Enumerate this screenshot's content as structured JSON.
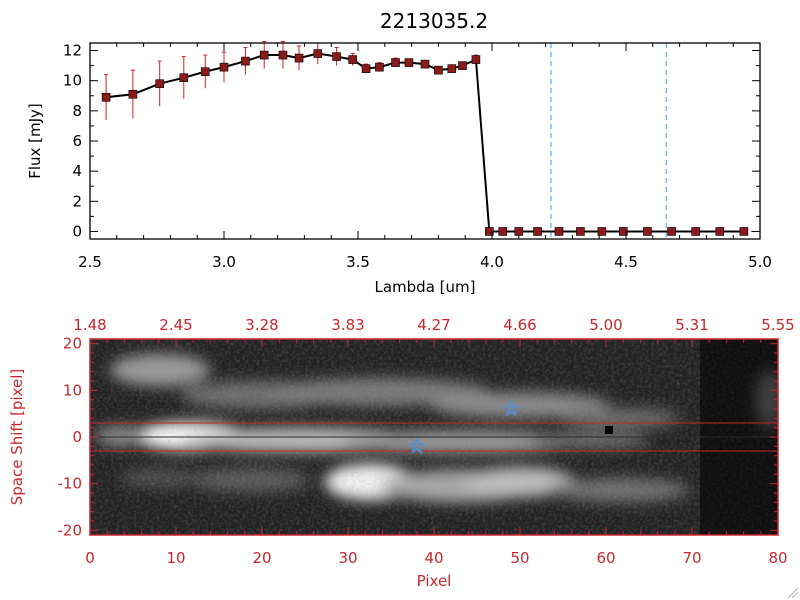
{
  "chart_data": [
    {
      "type": "line",
      "title": "2213035.2",
      "xlabel": "Lambda [um]",
      "ylabel": "Flux [mJy]",
      "xlim": [
        2.5,
        5.0
      ],
      "ylim": [
        -0.5,
        12.5
      ],
      "xticks": [
        "2.5",
        "3.0",
        "3.5",
        "4.0",
        "4.5",
        "5.0"
      ],
      "xtick_values": [
        2.5,
        3.0,
        3.5,
        4.0,
        4.5,
        5.0
      ],
      "yticks": [
        "0",
        "2",
        "4",
        "6",
        "8",
        "10",
        "12"
      ],
      "ytick_values": [
        0,
        2,
        4,
        6,
        8,
        10,
        12
      ],
      "grid": false,
      "series": [
        {
          "color": "#000000",
          "marker_color": "#8b1a1a",
          "x": [
            2.56,
            2.66,
            2.76,
            2.85,
            2.93,
            3.0,
            3.08,
            3.15,
            3.22,
            3.28,
            3.35,
            3.42,
            3.48,
            3.53,
            3.58,
            3.64,
            3.69,
            3.75,
            3.8,
            3.85,
            3.89,
            3.94,
            3.99,
            4.04,
            4.1,
            4.17,
            4.25,
            4.33,
            4.41,
            4.49,
            4.58,
            4.67,
            4.76,
            4.85,
            4.94
          ],
          "y": [
            8.9,
            9.1,
            9.8,
            10.2,
            10.6,
            10.9,
            11.3,
            11.7,
            11.7,
            11.5,
            11.8,
            11.6,
            11.4,
            10.8,
            10.9,
            11.2,
            11.2,
            11.1,
            10.7,
            10.8,
            11.0,
            11.4,
            0.0,
            0.0,
            0.0,
            0.0,
            0.0,
            0.0,
            0.0,
            0.0,
            0.0,
            0.0,
            0.0,
            0.0,
            0.0
          ],
          "err": [
            1.5,
            1.6,
            1.5,
            1.4,
            1.1,
            1.0,
            0.9,
            0.9,
            0.9,
            0.8,
            0.7,
            0.6,
            0.4,
            0.3,
            0.3,
            0.3,
            0.2,
            0.2,
            0.2,
            0.2,
            0.2,
            0.3,
            0,
            0,
            0,
            0,
            0,
            0,
            0,
            0,
            0,
            0,
            0,
            0,
            0
          ]
        }
      ],
      "vlines": [
        {
          "x": 4.22,
          "color": "#4a90d9",
          "style": "dashed"
        },
        {
          "x": 4.65,
          "color": "#4a90d9",
          "style": "dashed"
        }
      ],
      "hline": {
        "y": 0.0,
        "color": "#c8262c",
        "style": "dashed"
      }
    },
    {
      "type": "heatmap",
      "xlabel": "Pixel",
      "ylabel": "Space Shift [pixel]",
      "xlim": [
        0,
        80
      ],
      "ylim": [
        -21,
        21
      ],
      "xticks": [
        "0",
        "10",
        "20",
        "30",
        "40",
        "50",
        "60",
        "70",
        "80"
      ],
      "xtick_values": [
        0,
        10,
        20,
        30,
        40,
        50,
        60,
        70,
        80
      ],
      "yticks": [
        "-20",
        "-10",
        "0",
        "10",
        "20"
      ],
      "ytick_values": [
        -20,
        -10,
        0,
        10,
        20
      ],
      "top_ticks": [
        "1.48",
        "2.45",
        "3.28",
        "3.83",
        "4.27",
        "4.66",
        "5.00",
        "5.31",
        "5.55"
      ],
      "colormap": "grayscale",
      "aperture_lines": {
        "y": [
          3,
          -3
        ],
        "color": "#c8262c"
      },
      "stars": [
        {
          "x": 38,
          "y": -2,
          "color": "#4a90d9"
        },
        {
          "x": 49,
          "y": 6,
          "color": "#4a90d9"
        }
      ]
    }
  ],
  "colors": {
    "axis": "#000000",
    "accent_red": "#c8262c",
    "marker": "#8b1a1a",
    "dashed_blue": "#4a90d9"
  }
}
